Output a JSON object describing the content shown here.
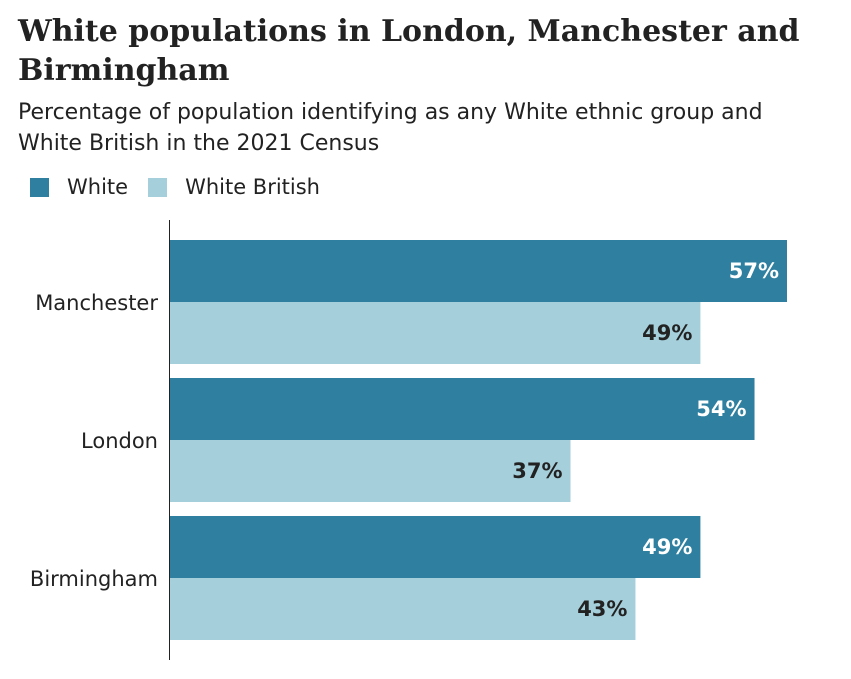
{
  "chart_data": {
    "type": "bar",
    "orientation": "horizontal",
    "title": "White populations in London, Manchester and Birmingham",
    "subtitle": "Percentage of population identifying as any White ethnic group and White British in the 2021 Census",
    "categories": [
      "Manchester",
      "London",
      "Birmingham"
    ],
    "series": [
      {
        "name": "White",
        "values": [
          57,
          54,
          49
        ],
        "labels": [
          "57%",
          "54%",
          "49%"
        ],
        "color": "#2e7fa0",
        "label_color": "#ffffff"
      },
      {
        "name": "White British",
        "values": [
          49,
          37,
          43
        ],
        "labels": [
          "49%",
          "37%",
          "43%"
        ],
        "color": "#a5cfdb",
        "label_color": "#222222"
      }
    ],
    "xlim": [
      0,
      57
    ],
    "grid": false,
    "legend_position": "top-left"
  }
}
